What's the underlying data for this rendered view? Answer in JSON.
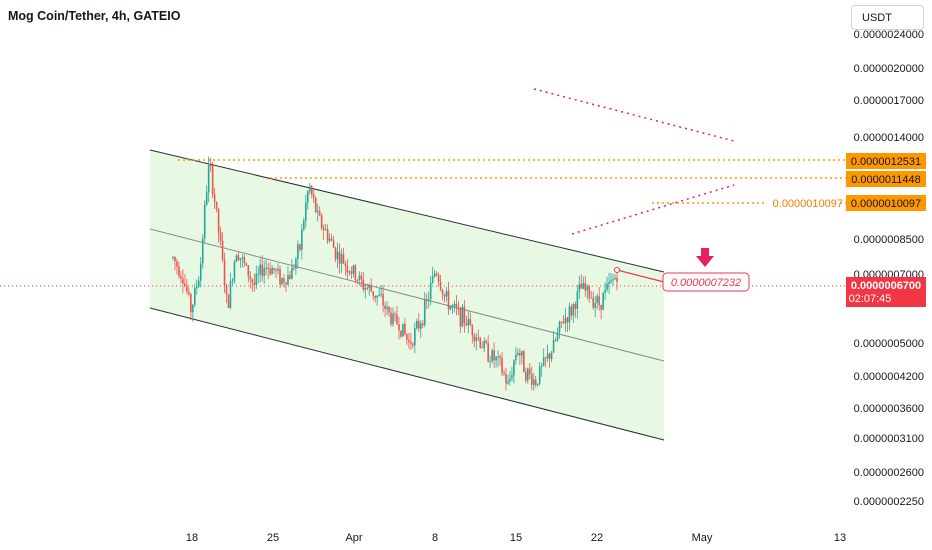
{
  "header": {
    "symbol_title": "Mog Coin/Tether, 4h, GATEIO",
    "currency_button": "USDT"
  },
  "colors": {
    "up": "#26a69a",
    "down": "#ef5350",
    "channel_fill": "#e8f9e3",
    "level_orange": "#ff9800",
    "level_label_orange": "#f57c00",
    "price_red": "#f23645",
    "arrow_pink": "#e91e63"
  },
  "chart_data": {
    "type": "candlestick",
    "scale": "log",
    "y_ticks": [
      "0.0000024000",
      "0.0000020000",
      "0.0000017000",
      "0.0000014000",
      "0.0000008500",
      "0.0000007000",
      "0.0000005000",
      "0.0000004200",
      "0.0000003600",
      "0.0000003100",
      "0.0000002600",
      "0.0000002250"
    ],
    "x_ticks": [
      "18",
      "25",
      "Apr",
      "8",
      "15",
      "22",
      "May",
      "13"
    ],
    "levels": [
      {
        "label": "0.0000012531",
        "value": 1.2531e-06
      },
      {
        "label": "0.0000011448",
        "value": 1.1448e-06
      },
      {
        "label": "0.0000010097",
        "value": 1.0097e-06,
        "left_label": "0.0000010097"
      }
    ],
    "current_price": {
      "label": "0.0000006700",
      "countdown": "02:07:45"
    },
    "projection_label": "0.0000007232",
    "series_anchor_prices": [
      7.8e-07,
      7.2e-07,
      6e-07,
      7.3e-07,
      1.25e-06,
      9e-07,
      6e-07,
      8.2e-07,
      7.4e-07,
      6.8e-07,
      7.5e-07,
      7.4e-07,
      7e-07,
      7.2e-07,
      8.2e-07,
      1.12e-06,
      9.5e-07,
      8.8e-07,
      8e-07,
      7.6e-07,
      7.2e-07,
      6.8e-07,
      6.6e-07,
      6.3e-07,
      5.8e-07,
      5.6e-07,
      5.1e-07,
      5.5e-07,
      6.2e-07,
      7.4e-07,
      6.4e-07,
      6e-07,
      5.8e-07,
      5.5e-07,
      5.1e-07,
      4.8e-07,
      4.6e-07,
      4.1e-07,
      5e-07,
      4.4e-07,
      4.2e-07,
      4.6e-07,
      5e-07,
      5.7e-07,
      6e-07,
      6.7e-07,
      6.5e-07,
      6.2e-07,
      6.7e-07,
      7.2e-07
    ],
    "candle_count": 225
  }
}
